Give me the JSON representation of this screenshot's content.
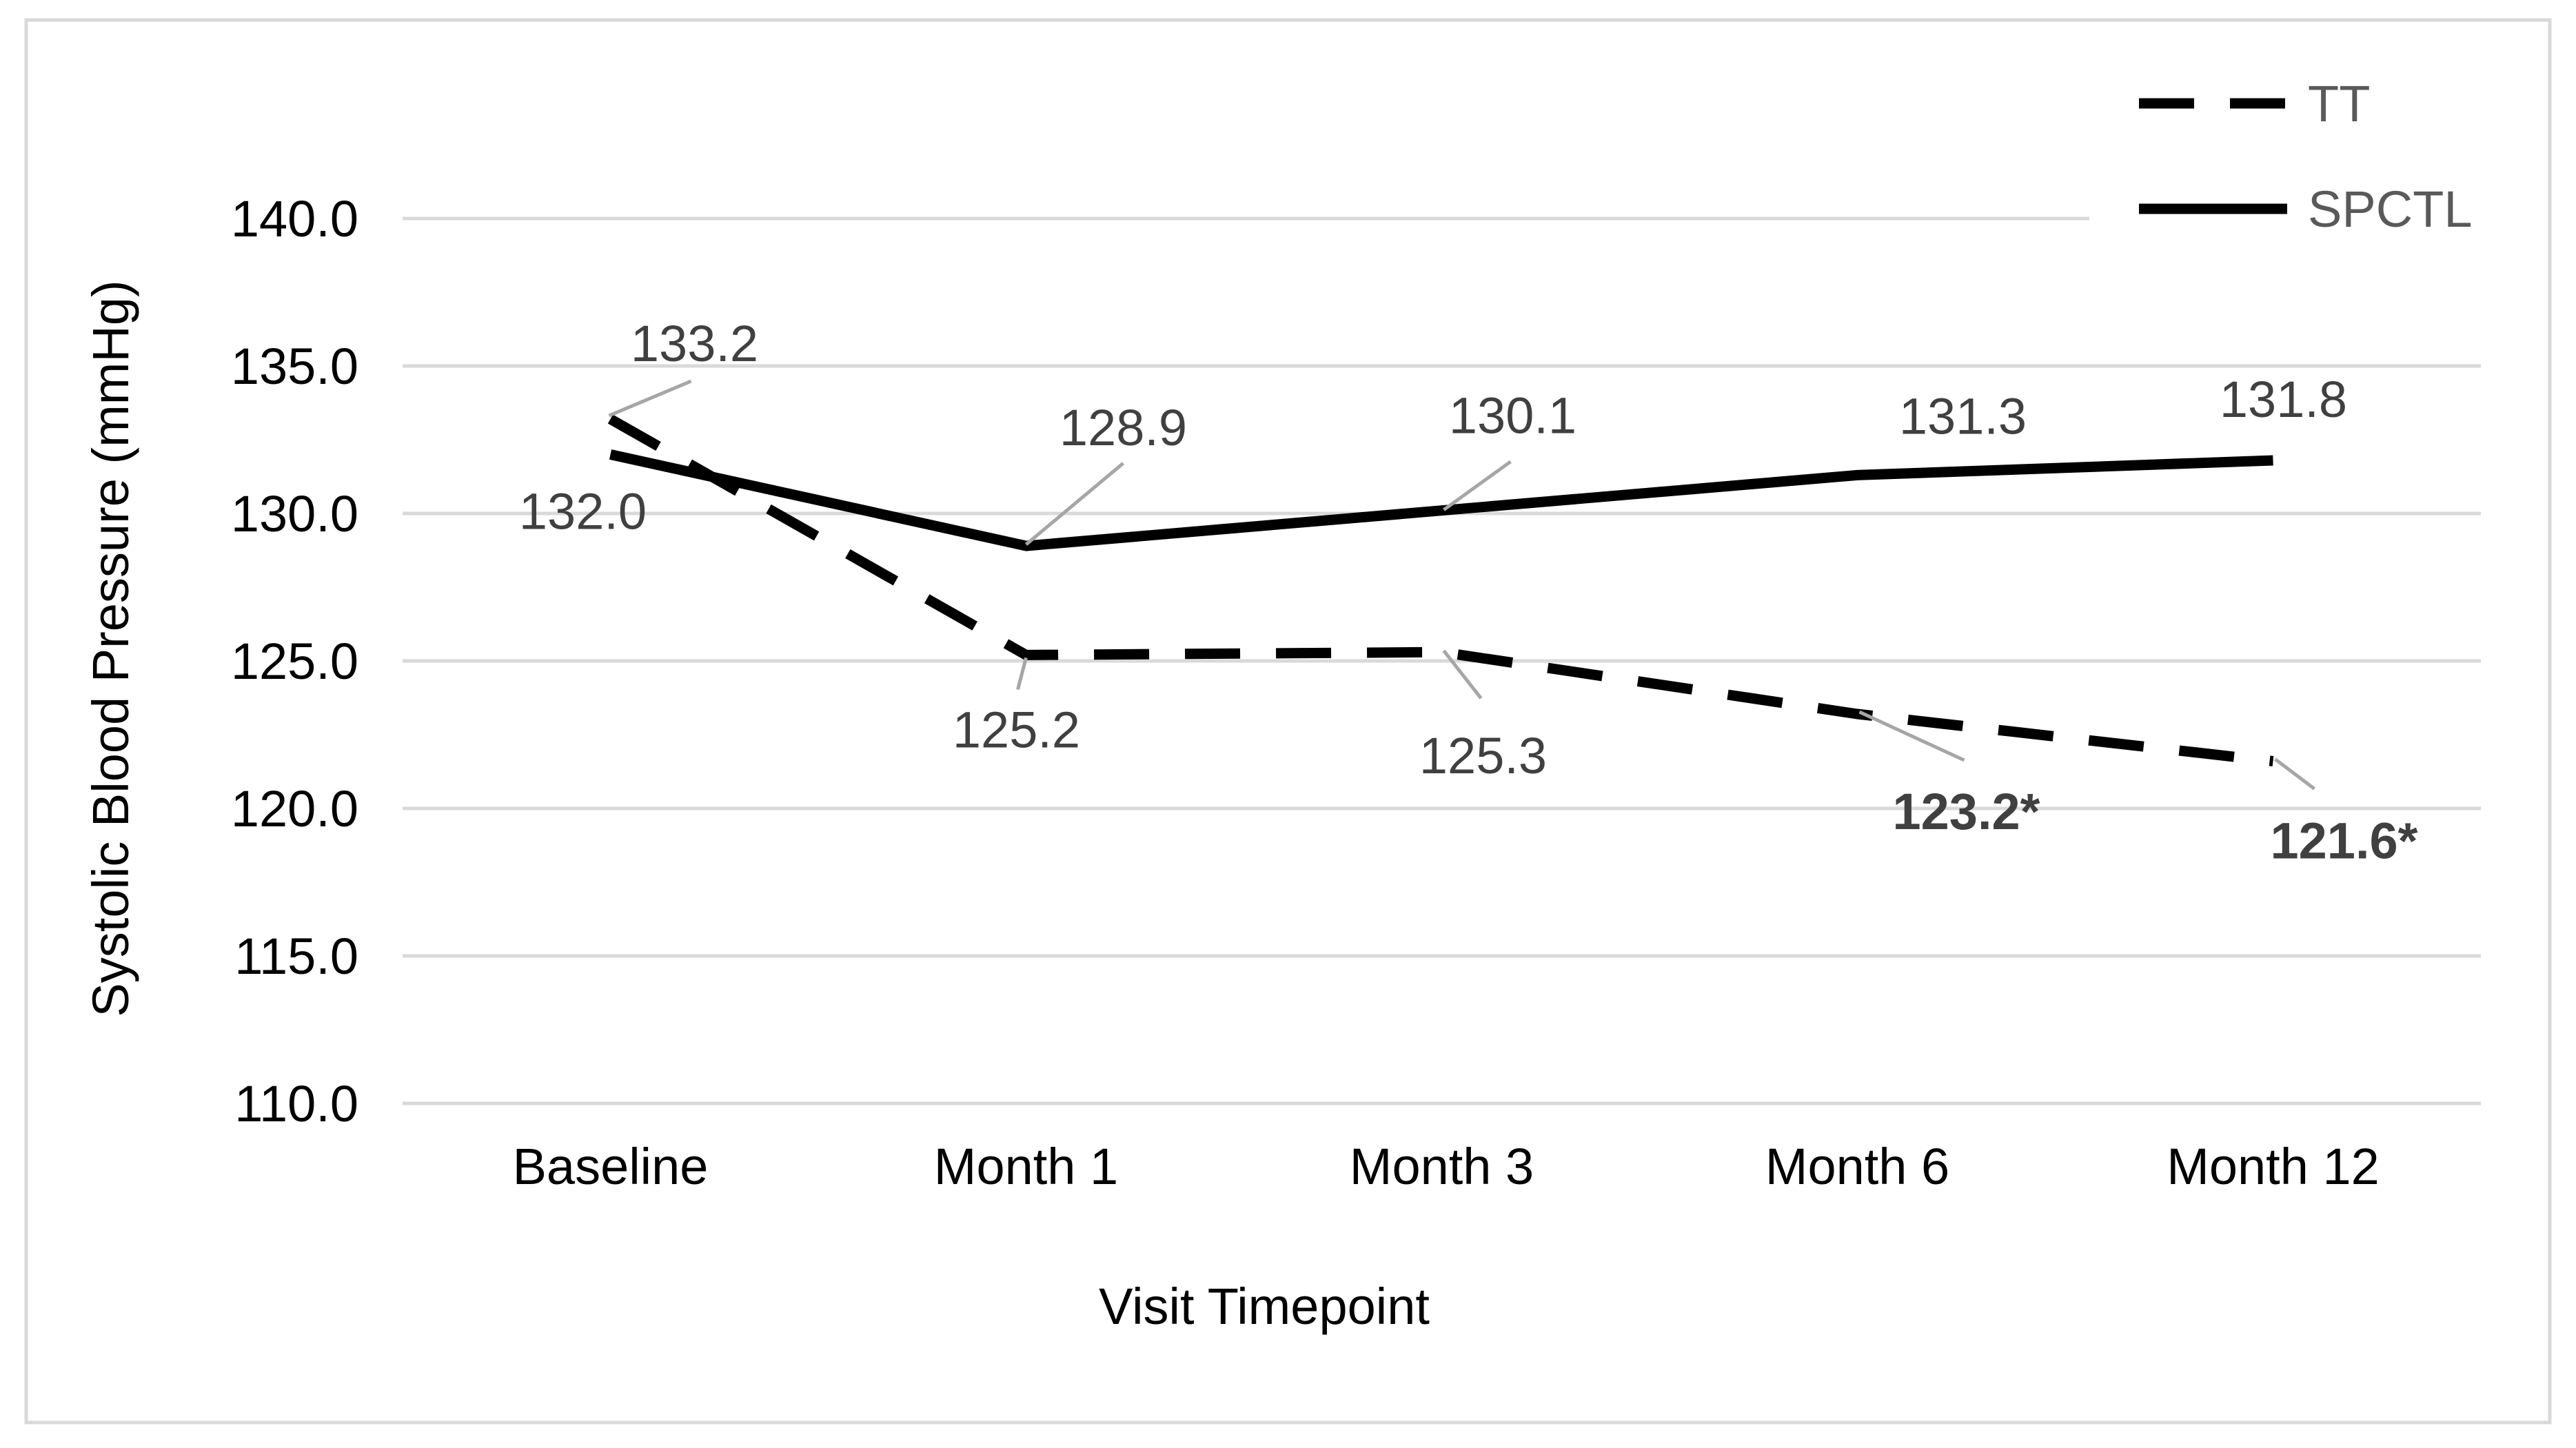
{
  "chart_data": {
    "type": "line",
    "categories": [
      "Baseline",
      "Month 1",
      "Month 3",
      "Month 6",
      "Month 12"
    ],
    "series": [
      {
        "name": "TT",
        "dashed": true,
        "color": "#000000",
        "values": [
          133.2,
          125.2,
          125.3,
          123.2,
          121.6
        ],
        "labels": [
          "133.2",
          "125.2",
          "125.3",
          "123.2*",
          "121.6*"
        ],
        "significant": [
          false,
          false,
          false,
          true,
          true
        ]
      },
      {
        "name": "SPCTL",
        "dashed": false,
        "color": "#000000",
        "values": [
          132.0,
          128.9,
          130.1,
          131.3,
          131.8
        ],
        "labels": [
          "132.0",
          "128.9",
          "130.1",
          "131.3",
          "131.8"
        ],
        "significant": [
          false,
          false,
          false,
          false,
          false
        ]
      }
    ],
    "xlabel": "Visit Timepoint",
    "ylabel": "Systolic Blood Pressure (mmHg)",
    "ylim": [
      110,
      140
    ],
    "y_ticks": [
      {
        "value": 110,
        "label": "110.0"
      },
      {
        "value": 115,
        "label": "115.0"
      },
      {
        "value": 120,
        "label": "120.0"
      },
      {
        "value": 125,
        "label": "125.0"
      },
      {
        "value": 130,
        "label": "130.0"
      },
      {
        "value": 135,
        "label": "135.0"
      },
      {
        "value": 140,
        "label": "140.0"
      }
    ],
    "grid": true,
    "legend": "top-right"
  },
  "colors": {
    "border": "#d9d9d9",
    "gridline": "#d9d9d9",
    "axis_text": "#000000",
    "data_label": "#404040",
    "leader_line": "#a6a6a6",
    "legend_text": "#595959"
  }
}
